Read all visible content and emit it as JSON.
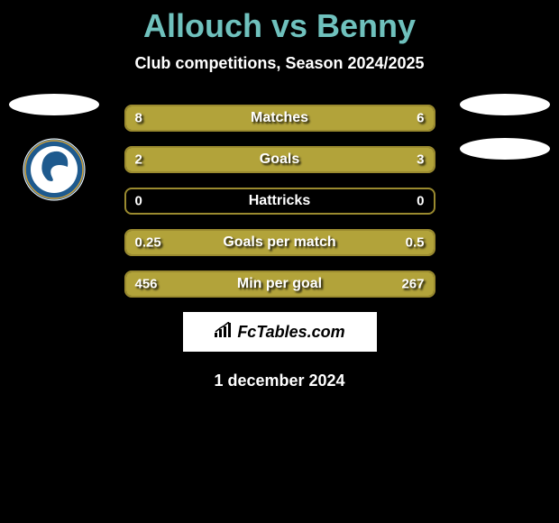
{
  "title": "Allouch vs Benny",
  "subtitle": "Club competitions, Season 2024/2025",
  "colors": {
    "background": "#000000",
    "title": "#6fc1bd",
    "bar_fill": "#b2a33a",
    "bar_border": "#9a8a2f",
    "text": "#ffffff",
    "brand_bg": "#ffffff",
    "brand_text": "#000000",
    "logo_ring": "#1e5a8e",
    "logo_inner": "#ffffff"
  },
  "left_player": {
    "ellipse": true,
    "has_logo": true
  },
  "right_player": {
    "ellipse_count": 2
  },
  "bars": [
    {
      "label": "Matches",
      "left_val": "8",
      "right_val": "6",
      "left_pct": 57,
      "right_pct": 43
    },
    {
      "label": "Goals",
      "left_val": "2",
      "right_val": "3",
      "left_pct": 40,
      "right_pct": 60
    },
    {
      "label": "Hattricks",
      "left_val": "0",
      "right_val": "0",
      "left_pct": 0,
      "right_pct": 0
    },
    {
      "label": "Goals per match",
      "left_val": "0.25",
      "right_val": "0.5",
      "left_pct": 33,
      "right_pct": 67
    },
    {
      "label": "Min per goal",
      "left_val": "456",
      "right_val": "267",
      "left_pct": 63,
      "right_pct": 37
    }
  ],
  "brand": "FcTables.com",
  "date": "1 december 2024"
}
